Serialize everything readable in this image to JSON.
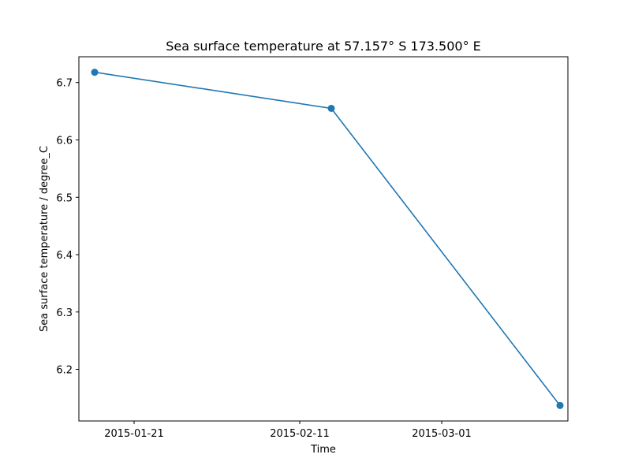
{
  "chart_data": {
    "type": "line",
    "title": "Sea surface temperature at 57.157° S 173.500° E",
    "xlabel": "Time",
    "ylabel": "Sea surface temperature / degree_C",
    "x": [
      "2015-01-16",
      "2015-02-15",
      "2015-03-16"
    ],
    "series": [
      {
        "values": [
          6.718,
          6.655,
          6.137
        ]
      }
    ],
    "xlim": [
      "2015-01-14",
      "2015-03-17"
    ],
    "ylim": [
      6.11,
      6.745
    ],
    "xticks": [
      "2015-01-21",
      "2015-02-11",
      "2015-03-01"
    ],
    "yticks": [
      6.2,
      6.3,
      6.4,
      6.5,
      6.6,
      6.7
    ],
    "ytick_labels": [
      "6.2",
      "6.3",
      "6.4",
      "6.5",
      "6.6",
      "6.7"
    ],
    "grid": false,
    "markers": true,
    "colors": {
      "series": "#1f77b4"
    }
  }
}
